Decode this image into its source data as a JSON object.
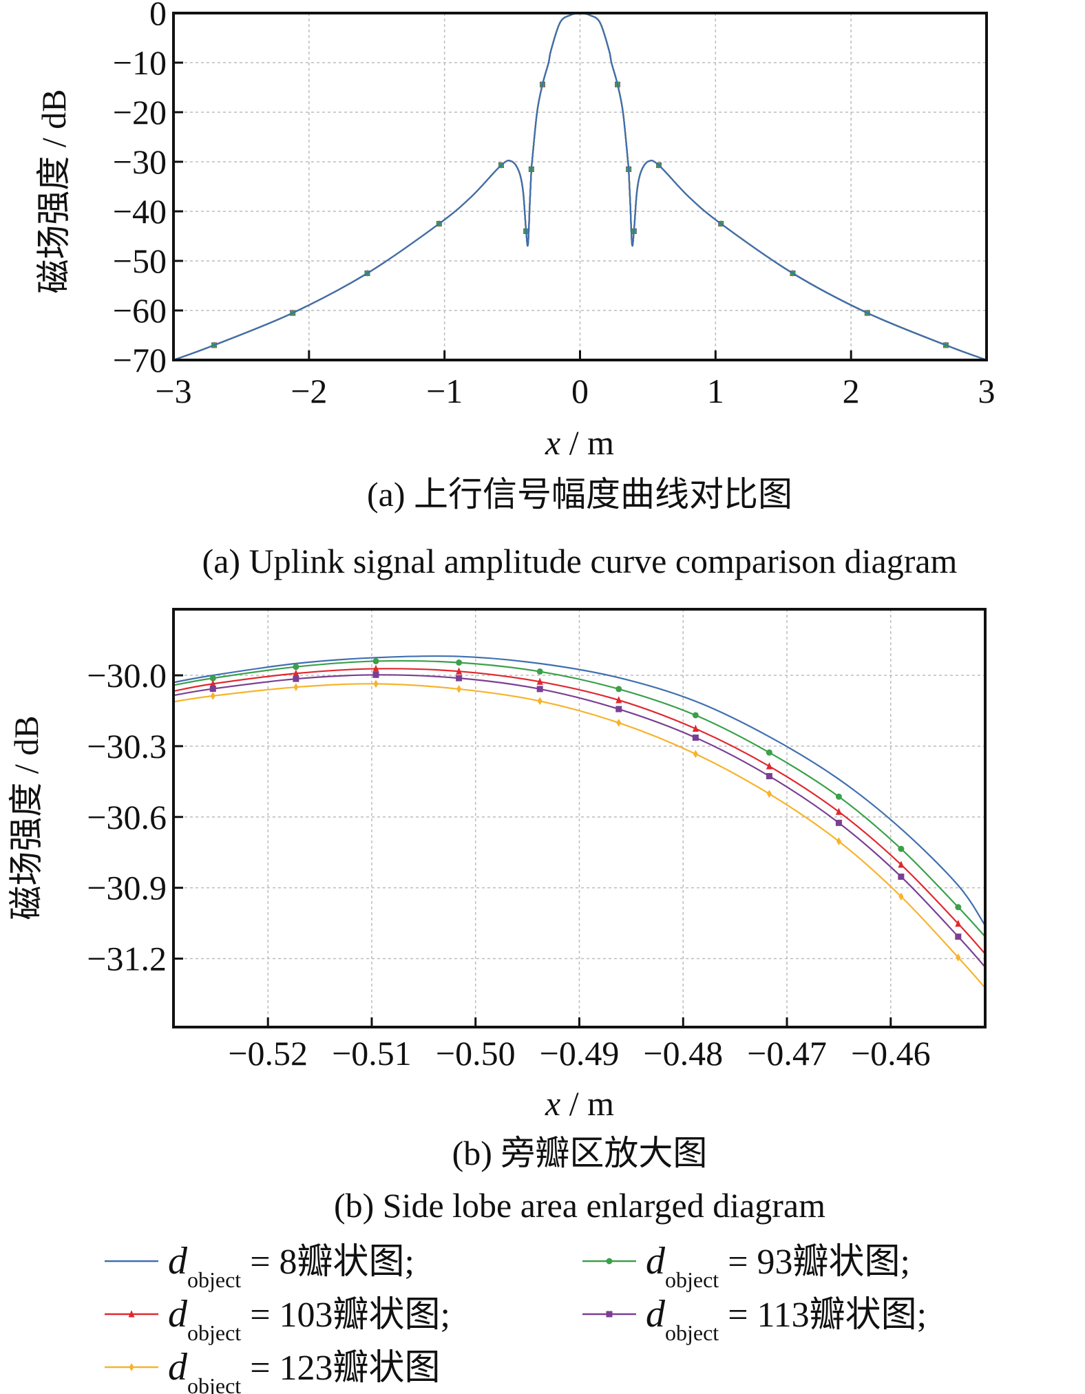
{
  "colors": {
    "s8": "#3f6fb0",
    "s93": "#3aa04a",
    "s103": "#e0282e",
    "s113": "#7a3f93",
    "s123": "#f7b32b"
  },
  "chart_data": [
    {
      "type": "line",
      "title": "",
      "xlabel_var": "x",
      "xlabel_unit": " / m",
      "ylabel": "磁场强度 / dB",
      "xlim": [
        -3,
        3
      ],
      "ylim": [
        -70,
        0
      ],
      "xticks": [
        -3,
        -2,
        -1,
        0,
        1,
        2,
        3
      ],
      "xtick_labels": [
        "−3",
        "−2",
        "−1",
        "0",
        "1",
        "2",
        "3"
      ],
      "yticks": [
        0,
        -10,
        -20,
        -30,
        -40,
        -50,
        -60,
        -70
      ],
      "ytick_labels": [
        "0",
        "−10",
        "−20",
        "−30",
        "−40",
        "−50",
        "−60",
        "−70"
      ],
      "grid": true,
      "note": "all five series overlap at this scale",
      "x": [
        -3,
        -2.7,
        -2.12,
        -1.57,
        -1.04,
        -0.8,
        -0.582,
        -0.506,
        -0.45,
        -0.42,
        -0.398,
        -0.384,
        -0.37,
        -0.359,
        -0.354,
        -0.317,
        -0.277,
        -0.232,
        -0.215,
        -0.147,
        -0.07,
        0,
        0.07,
        0.147,
        0.215,
        0.232,
        0.277,
        0.317,
        0.354,
        0.359,
        0.37,
        0.384,
        0.398,
        0.42,
        0.45,
        0.506,
        0.582,
        0.8,
        1.04,
        1.57,
        2.12,
        2.7,
        3
      ],
      "y": [
        -70,
        -67,
        -60.5,
        -52.5,
        -42.5,
        -37,
        -30.7,
        -29.9,
        -32,
        -36,
        -44,
        -46.7,
        -38,
        -31.5,
        -30,
        -20,
        -14.4,
        -10,
        -7.6,
        -1.9,
        -0.4,
        0,
        -0.4,
        -1.9,
        -7.6,
        -10,
        -14.4,
        -20,
        -30,
        -31.5,
        -38,
        -46.7,
        -44,
        -36,
        -32,
        -29.9,
        -30.7,
        -37,
        -42.5,
        -52.5,
        -60.5,
        -67,
        -70
      ],
      "marker_x": [
        -2.7,
        -2.12,
        -1.57,
        -1.04,
        -0.582,
        -0.398,
        -0.359,
        -0.277,
        0.277,
        0.359,
        0.398,
        0.582,
        1.04,
        1.57,
        2.12,
        2.7
      ],
      "caption_cn": "(a)  上行信号幅度曲线对比图",
      "caption_en": "(a)  Uplink signal amplitude curve comparison diagram"
    },
    {
      "type": "line",
      "title": "",
      "xlabel_var": "x",
      "xlabel_unit": " / m",
      "ylabel": "磁场强度 / dB",
      "xlim": [
        -0.5291,
        -0.4509
      ],
      "ylim": [
        -31.49,
        -29.72
      ],
      "xticks": [
        -0.52,
        -0.51,
        -0.5,
        -0.49,
        -0.48,
        -0.47,
        -0.46
      ],
      "xtick_labels": [
        "−0.52",
        "−0.51",
        "−0.50",
        "−0.49",
        "−0.48",
        "−0.47",
        "−0.46"
      ],
      "yticks": [
        -30.0,
        -30.3,
        -30.6,
        -30.9,
        -31.2
      ],
      "ytick_labels": [
        "−30.0",
        "−30.3",
        "−30.6",
        "−30.9",
        "−31.2"
      ],
      "grid": true,
      "x": [
        -0.5291,
        -0.5253,
        -0.5173,
        -0.5096,
        -0.5016,
        -0.4938,
        -0.4862,
        -0.4788,
        -0.4717,
        -0.465,
        -0.459,
        -0.4535,
        -0.4509
      ],
      "series": [
        {
          "key": "s8",
          "name_num": "8",
          "marker": "none",
          "values": [
            -30.03,
            -30.0,
            -29.95,
            -29.925,
            -29.92,
            -29.95,
            -30.01,
            -30.11,
            -30.26,
            -30.44,
            -30.65,
            -30.89,
            -31.06
          ]
        },
        {
          "key": "s93",
          "name_num": "93",
          "marker": "circle",
          "values": [
            -30.042,
            -30.012,
            -29.964,
            -29.94,
            -29.946,
            -29.984,
            -30.058,
            -30.169,
            -30.327,
            -30.514,
            -30.735,
            -30.982,
            -31.107
          ]
        },
        {
          "key": "s103",
          "name_num": "103",
          "marker": "triangle",
          "values": [
            -30.067,
            -30.036,
            -29.992,
            -29.972,
            -29.983,
            -30.027,
            -30.105,
            -30.226,
            -30.385,
            -30.578,
            -30.802,
            -31.052,
            -31.18
          ]
        },
        {
          "key": "s113",
          "name_num": "113",
          "marker": "square",
          "values": [
            -30.085,
            -30.057,
            -30.015,
            -29.998,
            -30.012,
            -30.058,
            -30.143,
            -30.264,
            -30.427,
            -30.625,
            -30.853,
            -31.107,
            -31.236
          ]
        },
        {
          "key": "s123",
          "name_num": "123",
          "marker": "diamond",
          "values": [
            -30.112,
            -30.087,
            -30.05,
            -30.036,
            -30.058,
            -30.109,
            -30.201,
            -30.333,
            -30.502,
            -30.703,
            -30.937,
            -31.195,
            -31.324
          ]
        }
      ],
      "caption_cn": "(b)  旁瓣区放大图",
      "caption_en": "(b)  Side lobe area enlarged diagram"
    }
  ],
  "legend": {
    "var": "d",
    "sub": "object",
    "items": [
      {
        "key": "s8",
        "text": " = 8瓣状图;",
        "marker": "none"
      },
      {
        "key": "s93",
        "text": " = 93瓣状图;",
        "marker": "circle"
      },
      {
        "key": "s103",
        "text": " = 103瓣状图;",
        "marker": "triangle"
      },
      {
        "key": "s113",
        "text": " = 113瓣状图;",
        "marker": "square"
      },
      {
        "key": "s123",
        "text": " = 123瓣状图",
        "marker": "diamond"
      }
    ]
  }
}
